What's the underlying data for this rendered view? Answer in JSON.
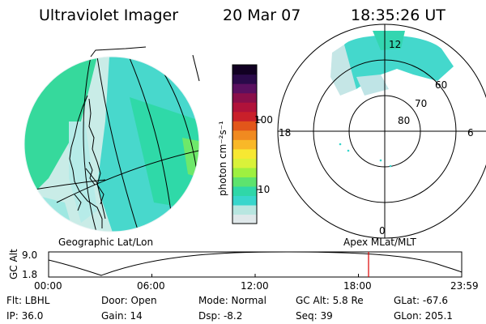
{
  "header": {
    "instrument": "Ultraviolet Imager",
    "date": "20 Mar 07",
    "time": "18:35:26 UT"
  },
  "colorbar": {
    "unit_label": "photon cm⁻²s⁻¹",
    "ticks": [
      "100",
      "10"
    ],
    "colors": [
      "#dfe8ea",
      "#b8e6e0",
      "#38d6cc",
      "#2fd7a8",
      "#5de36e",
      "#9ef040",
      "#d9f23a",
      "#f7e832",
      "#f9b828",
      "#f08a20",
      "#e2561a",
      "#c9202a",
      "#b0123a",
      "#8a0f4a",
      "#5a1060",
      "#2a0a4a",
      "#110022"
    ]
  },
  "polar": {
    "mlt": {
      "top": "12",
      "bottom": "0",
      "left": "18",
      "right": "6"
    },
    "mlat": [
      "60",
      "70",
      "80"
    ]
  },
  "map_labels": {
    "left": "Geographic Lat/Lon",
    "right": "Apex MLat/MLT"
  },
  "altitude_plot": {
    "axis_label": "GC Alt",
    "y_ticks": [
      "9.0",
      "1.8"
    ],
    "x_ticks": [
      "00:00",
      "06:00",
      "12:00",
      "18:00",
      "23:59"
    ],
    "current_hour": 18.59
  },
  "status": {
    "filter": "Flt: LBHL",
    "door": "Door: Open",
    "mode": "Mode: Normal",
    "gc_alt": "GC Alt: 5.8 Re",
    "glat": "GLat: -67.6",
    "ip": "IP: 36.0",
    "gain": "Gain: 14",
    "dsp": "Dsp:    -8.2",
    "seq": "Seq: 39",
    "glon": "GLon: 205.1"
  }
}
